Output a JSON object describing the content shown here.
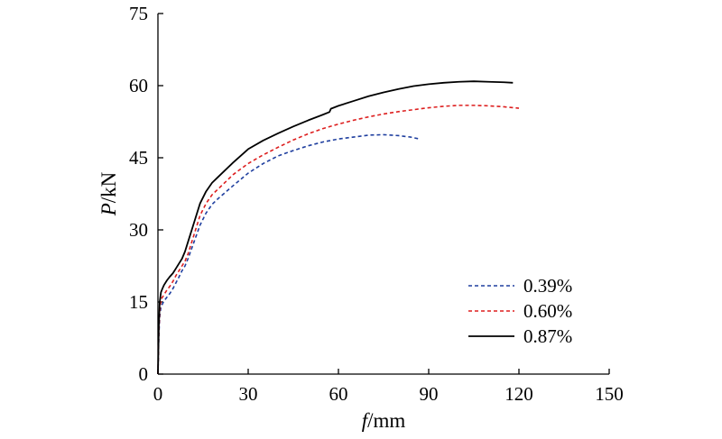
{
  "chart_data": {
    "type": "line",
    "xlabel_var": "f",
    "xlabel_unit": "/mm",
    "ylabel_var": "P",
    "ylabel_unit": "/kN",
    "xlim": [
      0,
      150
    ],
    "ylim": [
      0,
      75
    ],
    "xticks": [
      "0",
      "30",
      "60",
      "90",
      "120",
      "150"
    ],
    "yticks": [
      "0",
      "15",
      "30",
      "45",
      "60",
      "75"
    ],
    "grid": false,
    "legend_position": "bottom-right",
    "series": [
      {
        "name": "0.39%",
        "color": "#1f3f9f",
        "style": "dashed",
        "x": [
          0,
          0.3,
          0.6,
          1,
          2,
          3,
          4,
          5,
          6,
          7,
          8,
          9,
          10,
          12,
          14,
          16,
          18,
          20,
          25,
          30,
          35,
          40,
          45,
          50,
          55,
          60,
          65,
          70,
          75,
          80,
          84,
          87
        ],
        "y": [
          0,
          8,
          12,
          14,
          15.2,
          16,
          16.8,
          17.8,
          19,
          20.2,
          21.5,
          22.5,
          24,
          27.5,
          31,
          33.5,
          35.3,
          36.5,
          39.2,
          41.8,
          43.8,
          45.4,
          46.5,
          47.5,
          48.3,
          48.9,
          49.3,
          49.7,
          49.8,
          49.6,
          49.3,
          48.9
        ]
      },
      {
        "name": "0.60%",
        "color": "#dd1f1f",
        "style": "dashed",
        "x": [
          0,
          0.3,
          0.6,
          1,
          2,
          3,
          4,
          5,
          6,
          7,
          8,
          9,
          10,
          12,
          14,
          16,
          18,
          20,
          25,
          30,
          35,
          40,
          45,
          50,
          55,
          60,
          65,
          70,
          75,
          80,
          85,
          90,
          95,
          100,
          105,
          110,
          115,
          120
        ],
        "y": [
          0,
          9,
          13,
          15.5,
          16.5,
          17.5,
          18.3,
          19.3,
          20.5,
          21.5,
          22.5,
          23.5,
          25,
          29,
          33,
          35.5,
          37.3,
          38.5,
          41.5,
          43.8,
          45.6,
          47.2,
          48.7,
          50,
          51.1,
          52,
          52.8,
          53.5,
          54.1,
          54.6,
          55,
          55.4,
          55.7,
          55.9,
          55.9,
          55.8,
          55.6,
          55.3
        ]
      },
      {
        "name": "0.87%",
        "color": "#000000",
        "style": "solid",
        "x": [
          0,
          0.3,
          0.6,
          1,
          1.5,
          2,
          3,
          4,
          5,
          6,
          7,
          8,
          9,
          10,
          12,
          14,
          16,
          18,
          20,
          25,
          30,
          35,
          40,
          45,
          50,
          55,
          57,
          57.5,
          60,
          65,
          70,
          75,
          80,
          85,
          90,
          95,
          100,
          105,
          110,
          115,
          118
        ],
        "y": [
          0,
          10,
          15,
          17,
          17.8,
          18.5,
          19.5,
          20.3,
          21,
          22,
          23,
          24,
          25.5,
          27.5,
          31.5,
          35.5,
          38,
          39.8,
          41,
          44,
          46.8,
          48.6,
          50.1,
          51.5,
          52.8,
          54,
          54.5,
          55.2,
          55.8,
          56.8,
          57.8,
          58.6,
          59.3,
          59.9,
          60.3,
          60.6,
          60.8,
          60.9,
          60.8,
          60.7,
          60.6
        ]
      }
    ]
  }
}
